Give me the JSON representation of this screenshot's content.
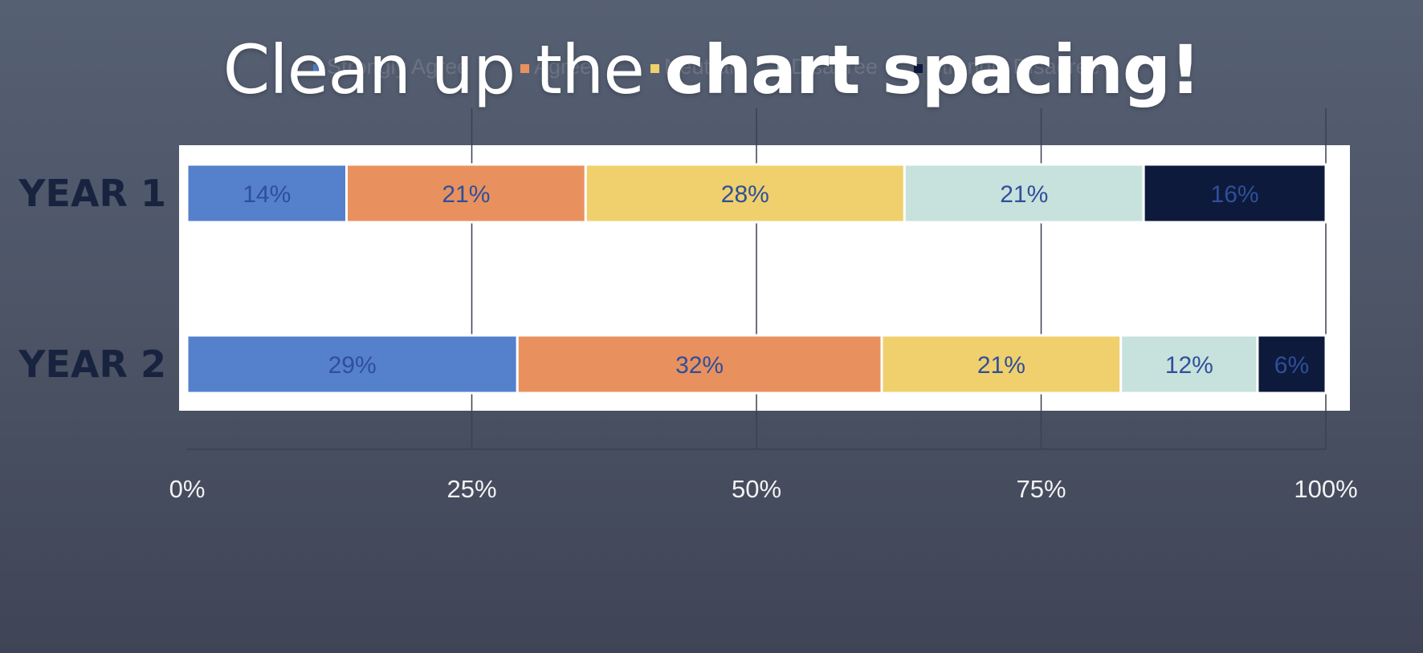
{
  "slide": {
    "title_light": "Clean up the ",
    "title_bold": "chart spacing!"
  },
  "chart_data": {
    "type": "bar",
    "orientation": "horizontal",
    "stacked": true,
    "percent": true,
    "categories": [
      "YEAR 1",
      "YEAR 2"
    ],
    "series": [
      {
        "name": "Strongly Agree",
        "values": [
          14,
          29
        ],
        "color": "#5580cc",
        "label_color": "#2f4f9a"
      },
      {
        "name": "Agree",
        "values": [
          21,
          32
        ],
        "color": "#e8915f",
        "label_color": "#2f4f9a"
      },
      {
        "name": "Neutral",
        "values": [
          28,
          21
        ],
        "color": "#efd06c",
        "label_color": "#2f4f9a"
      },
      {
        "name": "Disagree",
        "values": [
          21,
          12
        ],
        "color": "#c7e1dc",
        "label_color": "#2f4f9a"
      },
      {
        "name": "Strongly Disagree",
        "values": [
          16,
          6
        ],
        "color": "#0d1a3c",
        "label_color": "#2f4f9a"
      }
    ],
    "data_labels": [
      [
        "14%",
        "21%",
        "28%",
        "21%",
        "16%"
      ],
      [
        "29%",
        "32%",
        "21%",
        "12%",
        "6%"
      ]
    ],
    "xticks": [
      "0%",
      "25%",
      "50%",
      "75%",
      "100%"
    ],
    "xlim": [
      0,
      100
    ],
    "legend_position": "top",
    "grid": true,
    "colors": {
      "plot_background": "#ffffff",
      "category_label": "#18233f",
      "tick_label": "#f2f2f2",
      "gridline": "#3b4150",
      "legend_text": "#6b7385"
    }
  }
}
